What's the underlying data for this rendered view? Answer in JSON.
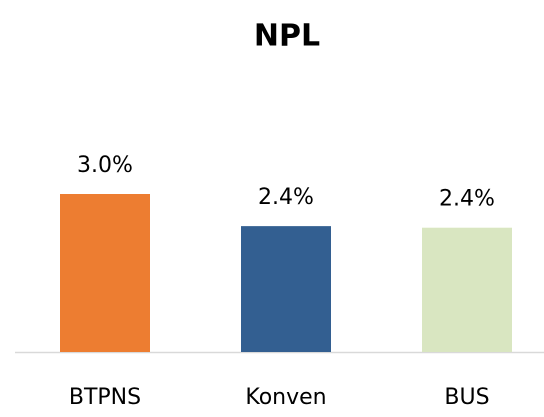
{
  "chart_data": {
    "type": "bar",
    "title": "NPL",
    "categories": [
      "BTPNS",
      "Konven",
      "BUS"
    ],
    "values": [
      3.0,
      2.39,
      2.36
    ],
    "value_labels": [
      "3.0%",
      "2.4%",
      "2.4%"
    ],
    "colors": [
      "#ed7d31",
      "#335f91",
      "#d9e6c1"
    ]
  }
}
